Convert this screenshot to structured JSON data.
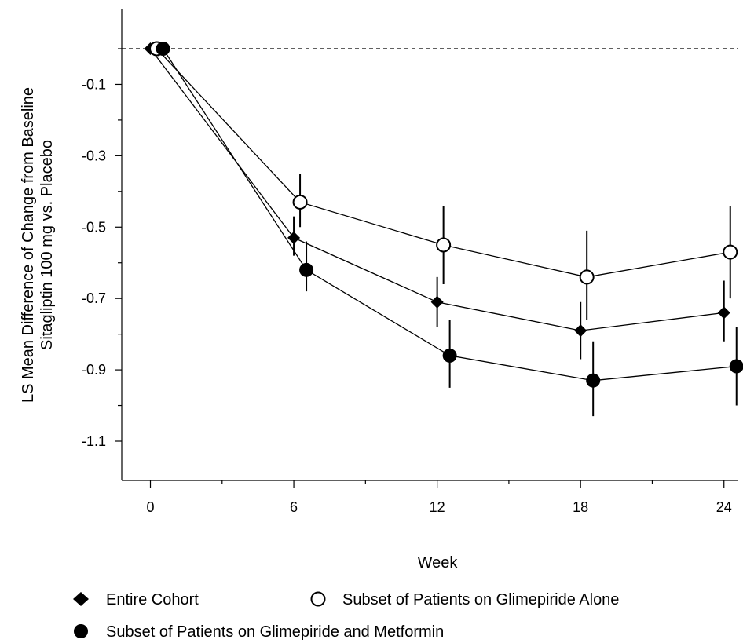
{
  "chart_data": {
    "type": "line",
    "title": "",
    "xlabel": "Week",
    "ylabel_lines": [
      "LS Mean Difference of Change from Baseline",
      "Sitagliptin 100 mg vs. Placebo"
    ],
    "x_ticks": [
      0,
      6,
      12,
      18,
      24
    ],
    "x_tick_labels": [
      "0",
      "6",
      "12",
      "18",
      "24"
    ],
    "xlim": [
      -1.2,
      24.6
    ],
    "y_ticks": [
      -0.1,
      -0.3,
      -0.5,
      -0.7,
      -0.9,
      -1.1
    ],
    "y_tick_labels": [
      "-0.1",
      "-0.3",
      "-0.5",
      "-0.7",
      "-0.9",
      "-1.1"
    ],
    "ylim": [
      -1.21,
      0.11
    ],
    "reference_line": {
      "y": 0,
      "style": "dashed"
    },
    "legend_position": "bottom",
    "series": [
      {
        "name": "Entire Cohort",
        "marker": "diamond",
        "color": "#000000",
        "x": [
          0,
          6,
          12,
          18,
          24
        ],
        "y": [
          0,
          -0.53,
          -0.71,
          -0.79,
          -0.74
        ],
        "err_low": [
          0,
          -0.58,
          -0.78,
          -0.87,
          -0.82
        ],
        "err_high": [
          0,
          -0.47,
          -0.64,
          -0.71,
          -0.65
        ]
      },
      {
        "name": "Subset of Patients on Glimepiride Alone",
        "marker": "open-circle",
        "color": "#000000",
        "x": [
          0,
          6,
          12,
          18,
          24
        ],
        "y": [
          0,
          -0.43,
          -0.55,
          -0.64,
          -0.57
        ],
        "err_low": [
          0,
          -0.5,
          -0.66,
          -0.76,
          -0.7
        ],
        "err_high": [
          0,
          -0.35,
          -0.44,
          -0.51,
          -0.44
        ]
      },
      {
        "name": "Subset of Patients on Glimepiride and Metformin",
        "marker": "filled-circle",
        "color": "#000000",
        "x": [
          0,
          6,
          12,
          18,
          24
        ],
        "y": [
          0,
          -0.62,
          -0.86,
          -0.93,
          -0.89
        ],
        "err_low": [
          0,
          -0.68,
          -0.95,
          -1.03,
          -1.0
        ],
        "err_high": [
          0,
          -0.54,
          -0.76,
          -0.82,
          -0.78
        ]
      }
    ]
  }
}
